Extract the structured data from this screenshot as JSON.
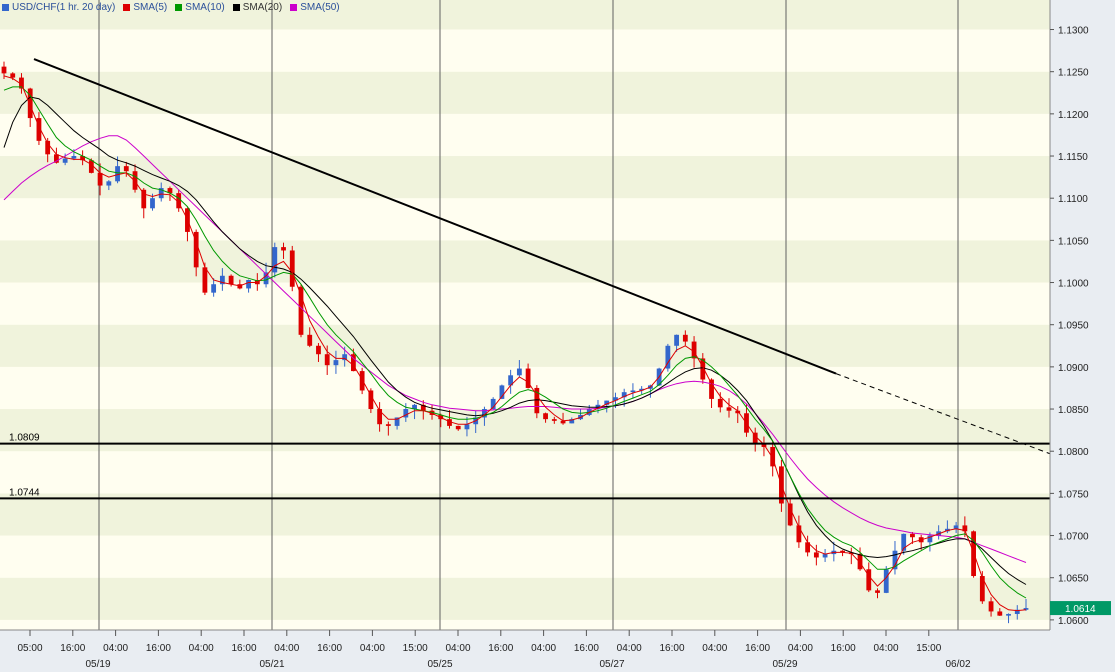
{
  "chart_data": {
    "type": "line",
    "instrument": "USD/CHF",
    "timeframe": "1 hr.",
    "period": "20 day",
    "legend": [
      {
        "label": "USD/CHF(1 hr.  20 day)",
        "color": "#3366cc"
      },
      {
        "label": "SMA(5)",
        "color": "#dd0000"
      },
      {
        "label": "SMA(10)",
        "color": "#009900"
      },
      {
        "label": "SMA(20)",
        "color": "#000000"
      },
      {
        "label": "SMA(50)",
        "color": "#cc00cc"
      }
    ],
    "ylim": [
      1.0588,
      1.1335
    ],
    "y_ticks": [
      "1.0600",
      "1.0650",
      "1.0700",
      "1.0750",
      "1.0800",
      "1.0850",
      "1.0900",
      "1.0950",
      "1.1000",
      "1.1050",
      "1.1100",
      "1.1150",
      "1.1200",
      "1.1250",
      "1.1300"
    ],
    "x_ticks": [
      "05:00",
      "16:00",
      "04:00",
      "16:00",
      "04:00",
      "16:00",
      "04:00",
      "16:00",
      "04:00",
      "15:00",
      "04:00",
      "16:00",
      "04:00",
      "16:00",
      "04:00",
      "16:00",
      "04:00",
      "16:00",
      "04:00",
      "16:00",
      "04:00",
      "15:00"
    ],
    "date_labels": [
      "05/19",
      "05/21",
      "05/25",
      "05/27",
      "05/29",
      "06/02"
    ],
    "last_price": "1.0614",
    "last_price_value": 1.0614,
    "horizontal_levels": [
      {
        "label": "1.0809",
        "value": 1.0809
      },
      {
        "label": "1.0744",
        "value": 1.0744
      }
    ],
    "trendline": {
      "start_value": 1.1265,
      "end_value": 1.0797,
      "extended_from_value": 1.0892
    },
    "colors": {
      "up_candle": "#3366cc",
      "down_candle": "#dd0000",
      "band_light": "#fffef0",
      "band_dark": "#f0f3dc",
      "price_tag_bg": "#009966"
    },
    "price_series": [
      1.1248,
      1.1243,
      1.123,
      1.1195,
      1.1168,
      1.1152,
      1.1142,
      1.1147,
      1.115,
      1.1145,
      1.113,
      1.1115,
      1.112,
      1.1138,
      1.1132,
      1.111,
      1.1088,
      1.11,
      1.1112,
      1.1106,
      1.1088,
      1.106,
      1.1018,
      1.0988,
      1.0998,
      1.1008,
      1.0998,
      1.0993,
      1.1003,
      1.0998,
      1.1012,
      1.1042,
      1.1038,
      1.0995,
      1.0938,
      1.0925,
      1.0915,
      1.0902,
      1.0908,
      1.0915,
      1.0895,
      1.0872,
      1.085,
      1.0832,
      1.083,
      1.084,
      1.085,
      1.0855,
      1.0848,
      1.0843,
      1.0838,
      1.083,
      1.0826,
      1.0832,
      1.084,
      1.085,
      1.0862,
      1.0878,
      1.089,
      1.0898,
      1.0875,
      1.0845,
      1.0838,
      1.0836,
      1.0833,
      1.0838,
      1.0843,
      1.085,
      1.0855,
      1.086,
      1.0864,
      1.087,
      1.0872,
      1.0874,
      1.0878,
      1.0898,
      1.0925,
      1.0938,
      1.093,
      1.091,
      1.0885,
      1.0862,
      1.0852,
      1.0848,
      1.0845,
      1.0822,
      1.0808,
      1.0805,
      1.0782,
      1.0738,
      1.0712,
      1.0692,
      1.068,
      1.0674,
      1.0678,
      1.0682,
      1.068,
      1.0678,
      1.066,
      1.0635,
      1.0632,
      1.066,
      1.0682,
      1.0702,
      1.0698,
      1.0692,
      1.07,
      1.0705,
      1.0708,
      1.0712,
      1.0705,
      1.0652,
      1.0622,
      1.061,
      1.0605,
      1.0607,
      1.0612,
      1.0614
    ],
    "sma5_series": [
      1.1245,
      1.1242,
      1.1235,
      1.121,
      1.1185,
      1.1165,
      1.1152,
      1.1148,
      1.1146,
      1.1146,
      1.114,
      1.113,
      1.1125,
      1.1128,
      1.113,
      1.112,
      1.1105,
      1.1102,
      1.1105,
      1.1104,
      1.1095,
      1.1075,
      1.1048,
      1.1018,
      1.1003,
      1.1,
      1.0998,
      1.0996,
      1.1,
      1.1,
      1.1008,
      1.102,
      1.1025,
      1.1012,
      1.0985,
      1.0955,
      1.0935,
      1.0918,
      1.091,
      1.091,
      1.0902,
      1.0885,
      1.0866,
      1.0848,
      1.0838,
      1.0838,
      1.0843,
      1.0848,
      1.0848,
      1.0845,
      1.084,
      1.0835,
      1.0832,
      1.0832,
      1.0836,
      1.0843,
      1.0852,
      1.0865,
      1.0878,
      1.0888,
      1.0882,
      1.0866,
      1.0852,
      1.0843,
      1.0836,
      1.0837,
      1.084,
      1.0846,
      1.0851,
      1.0856,
      1.086,
      1.0865,
      1.0869,
      1.0872,
      1.0876,
      1.0888,
      1.0905,
      1.092,
      1.0925,
      1.0918,
      1.09,
      1.088,
      1.0865,
      1.0855,
      1.0848,
      1.0833,
      1.0818,
      1.0808,
      1.0792,
      1.076,
      1.0732,
      1.071,
      1.0692,
      1.0682,
      1.0678,
      1.068,
      1.068,
      1.0679,
      1.0668,
      1.0652,
      1.064,
      1.065,
      1.0665,
      1.0685,
      1.0692,
      1.0695,
      1.0698,
      1.0702,
      1.0706,
      1.0708,
      1.0706,
      1.068,
      1.065,
      1.063,
      1.0618,
      1.0612,
      1.0611,
      1.0612
    ],
    "sma10_series": [
      1.1228,
      1.1232,
      1.1232,
      1.1222,
      1.1205,
      1.1188,
      1.1172,
      1.1162,
      1.1155,
      1.115,
      1.1145,
      1.1138,
      1.1132,
      1.113,
      1.113,
      1.1126,
      1.1118,
      1.1112,
      1.111,
      1.1106,
      1.11,
      1.109,
      1.1074,
      1.1055,
      1.1038,
      1.1025,
      1.1015,
      1.1008,
      1.1005,
      1.1002,
      1.1003,
      1.1008,
      1.1012,
      1.101,
      1.0998,
      1.0982,
      1.0965,
      1.095,
      1.0938,
      1.0928,
      1.0918,
      1.0905,
      1.0892,
      1.0878,
      1.0866,
      1.0858,
      1.0852,
      1.085,
      1.0848,
      1.0846,
      1.0843,
      1.084,
      1.0838,
      1.0838,
      1.0839,
      1.0842,
      1.0846,
      1.0853,
      1.0862,
      1.087,
      1.0873,
      1.087,
      1.0864,
      1.0857,
      1.085,
      1.0846,
      1.0845,
      1.0846,
      1.0848,
      1.0851,
      1.0855,
      1.0859,
      1.0863,
      1.0867,
      1.0871,
      1.0879,
      1.089,
      1.0902,
      1.091,
      1.0912,
      1.0908,
      1.09,
      1.089,
      1.0878,
      1.0866,
      1.0852,
      1.0838,
      1.0826,
      1.0812,
      1.0792,
      1.077,
      1.075,
      1.0732,
      1.0718,
      1.0706,
      1.0698,
      1.0692,
      1.0688,
      1.068,
      1.067,
      1.066,
      1.066,
      1.0663,
      1.067,
      1.0676,
      1.0682,
      1.0688,
      1.0692,
      1.0696,
      1.07,
      1.0702,
      1.0694,
      1.068,
      1.0664,
      1.065,
      1.064,
      1.0632,
      1.0626
    ],
    "sma20_series": [
      1.116,
      1.119,
      1.121,
      1.122,
      1.1218,
      1.121,
      1.12,
      1.119,
      1.118,
      1.1172,
      1.1165,
      1.1158,
      1.115,
      1.1145,
      1.1142,
      1.1138,
      1.1133,
      1.1128,
      1.1124,
      1.112,
      1.1115,
      1.1108,
      1.1098,
      1.1085,
      1.1072,
      1.106,
      1.105,
      1.104,
      1.1032,
      1.1025,
      1.102,
      1.1018,
      1.1016,
      1.1012,
      1.1004,
      1.0994,
      1.0983,
      1.0972,
      1.096,
      1.0948,
      1.0936,
      1.0922,
      1.0908,
      1.0895,
      1.0882,
      1.0872,
      1.0864,
      1.0858,
      1.0854,
      1.0851,
      1.0849,
      1.0847,
      1.0845,
      1.0843,
      1.0842,
      1.0843,
      1.0845,
      1.0848,
      1.0852,
      1.0857,
      1.086,
      1.0861,
      1.086,
      1.0858,
      1.0856,
      1.0854,
      1.0853,
      1.0852,
      1.0852,
      1.0853,
      1.0854,
      1.0856,
      1.0859,
      1.0863,
      1.0868,
      1.0874,
      1.0881,
      1.0888,
      1.0894,
      1.0898,
      1.0899,
      1.0896,
      1.089,
      1.0882,
      1.0872,
      1.086,
      1.0845,
      1.083,
      1.0812,
      1.0792,
      1.077,
      1.0748,
      1.0728,
      1.0712,
      1.07,
      1.069,
      1.0684,
      1.068,
      1.0677,
      1.0675,
      1.0674,
      1.0675,
      1.0677,
      1.068,
      1.0682,
      1.0685,
      1.0688,
      1.0691,
      1.0694,
      1.0696,
      1.0696,
      1.0692,
      1.0684,
      1.0674,
      1.0664,
      1.0655,
      1.0648,
      1.0642
    ],
    "sma50_series": [
      1.1098,
      1.1108,
      1.1118,
      1.1126,
      1.1133,
      1.1139,
      1.1144,
      1.115,
      1.1156,
      1.1162,
      1.1167,
      1.1171,
      1.1174,
      1.1174,
      1.1169,
      1.116,
      1.115,
      1.114,
      1.113,
      1.112,
      1.111,
      1.11,
      1.109,
      1.108,
      1.107,
      1.106,
      1.105,
      1.104,
      1.103,
      1.102,
      1.101,
      1.1,
      1.099,
      1.098,
      1.097,
      1.096,
      1.095,
      1.094,
      1.093,
      1.092,
      1.091,
      1.0902,
      1.0894,
      1.0886,
      1.0878,
      1.0872,
      1.0866,
      1.0862,
      1.0858,
      1.0855,
      1.0853,
      1.0851,
      1.085,
      1.0849,
      1.0848,
      1.0848,
      1.0849,
      1.085,
      1.0851,
      1.0852,
      1.0853,
      1.0853,
      1.0853,
      1.0852,
      1.0851,
      1.085,
      1.085,
      1.085,
      1.0851,
      1.0852,
      1.0854,
      1.0856,
      1.0859,
      1.0863,
      1.0868,
      1.0873,
      1.0877,
      1.088,
      1.0882,
      1.0883,
      1.0882,
      1.088,
      1.0877,
      1.0872,
      1.0865,
      1.0856,
      1.0845,
      1.0833,
      1.082,
      1.0806,
      1.0792,
      1.0779,
      1.0767,
      1.0757,
      1.0748,
      1.074,
      1.0733,
      1.0727,
      1.0721,
      1.0716,
      1.0712,
      1.0709,
      1.0707,
      1.0705,
      1.0703,
      1.0702,
      1.0701,
      1.07,
      1.0699,
      1.0698,
      1.0696,
      1.0692,
      1.0688,
      1.0684,
      1.068,
      1.0676,
      1.0672,
      1.0668
    ]
  }
}
